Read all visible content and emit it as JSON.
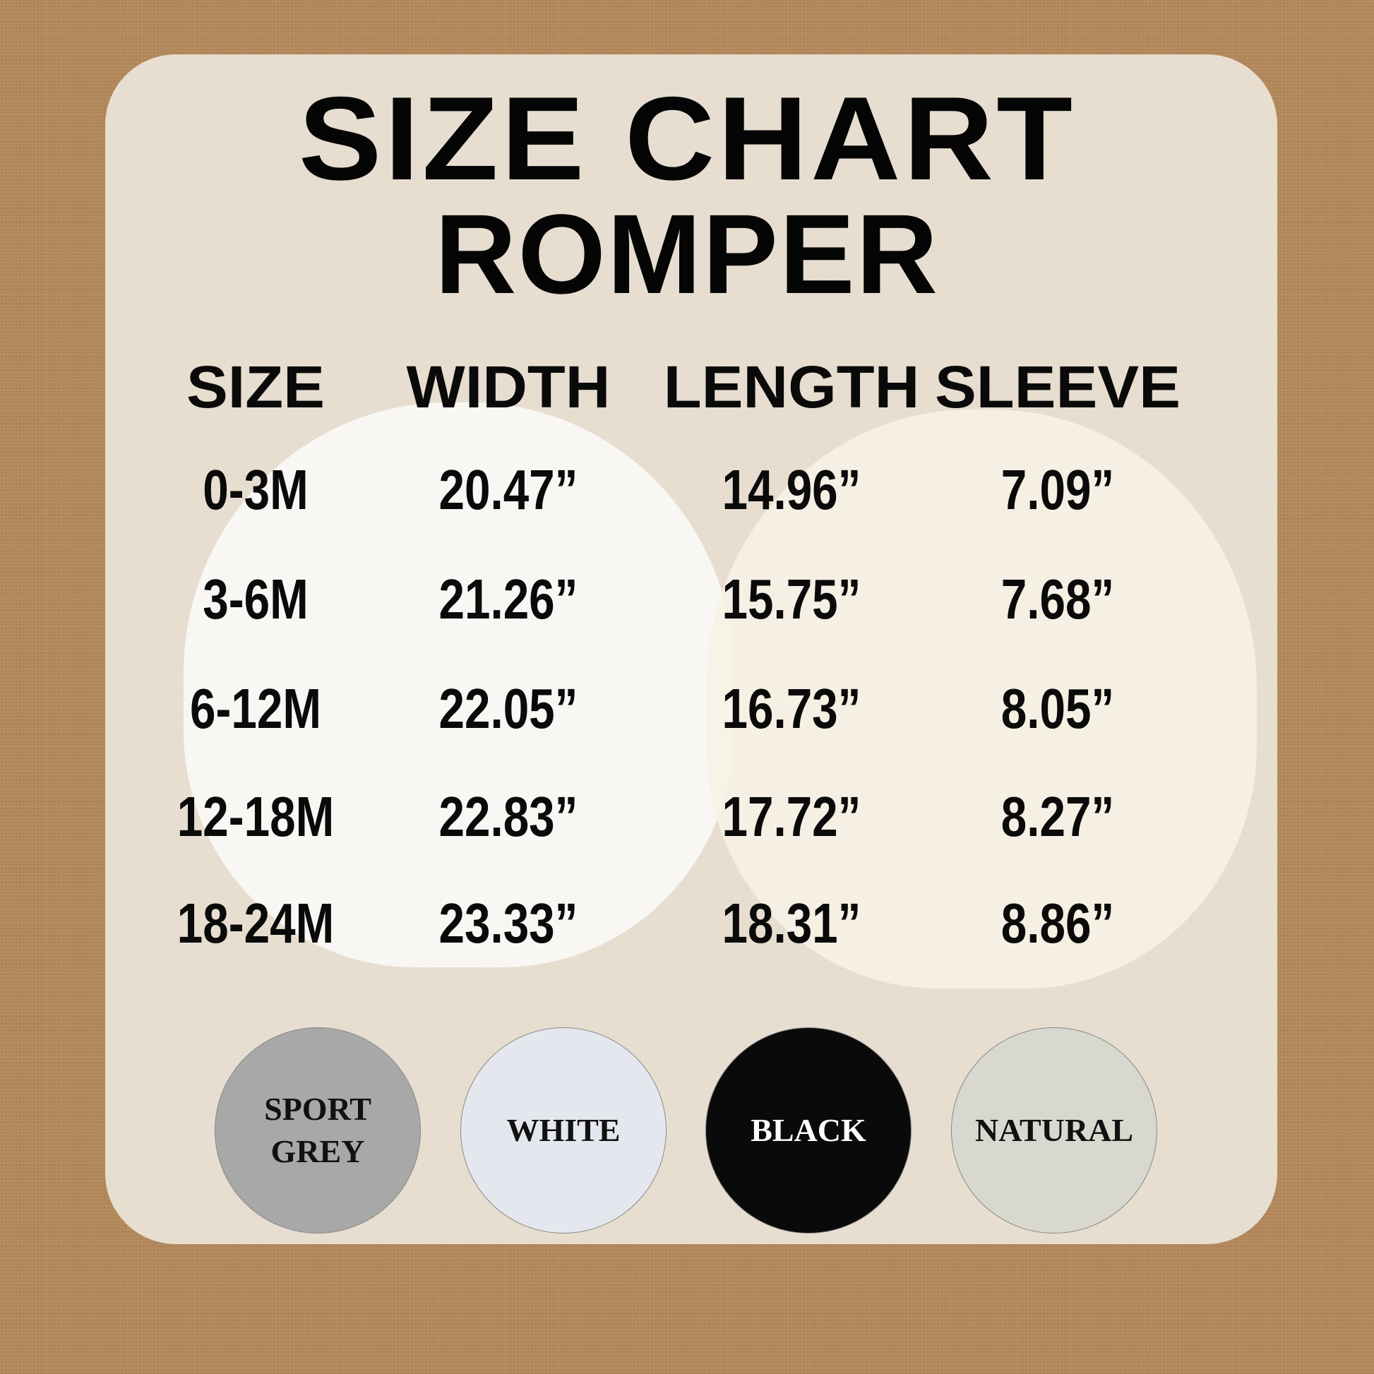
{
  "title": "SIZE CHART",
  "subtitle": "ROMPER",
  "table": {
    "headers": [
      "SIZE",
      "WIDTH",
      "LENGTH",
      "SLEEVE"
    ],
    "rows": [
      [
        "0-3M",
        "20.47”",
        "14.96”",
        "7.09”"
      ],
      [
        "3-6M",
        "21.26”",
        "15.75”",
        "7.68”"
      ],
      [
        "6-12M",
        "22.05”",
        "16.73”",
        "8.05”"
      ],
      [
        "12-18M",
        "22.83”",
        "17.72”",
        "8.27”"
      ],
      [
        "18-24M",
        "23.33”",
        "18.31”",
        "8.86”"
      ]
    ]
  },
  "colors": [
    {
      "label": "SPORT\nGREY",
      "swatch": "#a8a8a8",
      "text_color": "#111111"
    },
    {
      "label": "WHITE",
      "swatch": "#e4e8ee",
      "text_color": "#111111"
    },
    {
      "label": "BLACK",
      "swatch": "#0a0a0a",
      "text_color": "#ffffff"
    },
    {
      "label": "NATURAL",
      "swatch": "#d9d8cf",
      "text_color": "#111111"
    }
  ]
}
